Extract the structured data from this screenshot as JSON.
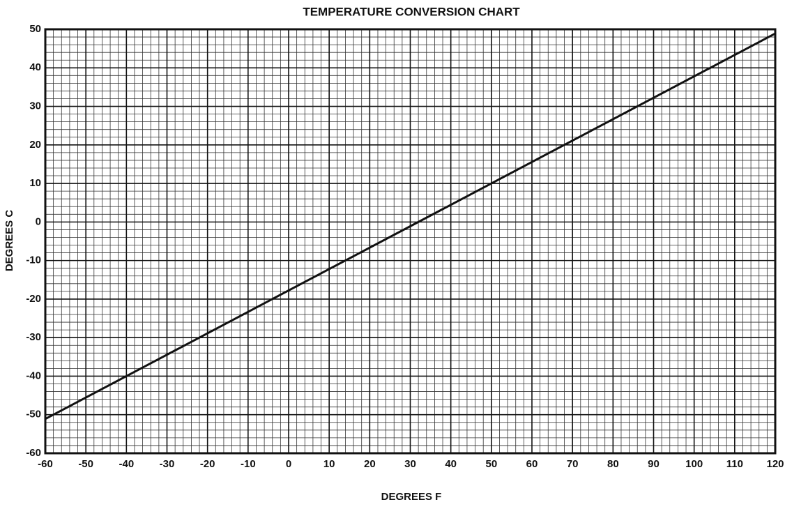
{
  "chart_data": {
    "type": "line",
    "title": "TEMPERATURE CONVERSION CHART",
    "x_label": "DEGREES F",
    "y_label": "DEGREES C",
    "x": [
      -60,
      120
    ],
    "series": [
      {
        "name": "Celsius",
        "color": "#111111",
        "values": [
          -51.1,
          48.9
        ]
      }
    ],
    "xlim": [
      -60,
      120
    ],
    "xticks": [
      -60,
      -50,
      -40,
      -30,
      -20,
      -10,
      0,
      10,
      20,
      30,
      40,
      50,
      60,
      70,
      80,
      90,
      100,
      110,
      120
    ],
    "ylim": [
      -60,
      50
    ],
    "yticks": [
      -60,
      -50,
      -40,
      -30,
      -20,
      -10,
      0,
      10,
      20,
      30,
      40,
      50
    ],
    "grid": true,
    "minor_grid": true
  }
}
